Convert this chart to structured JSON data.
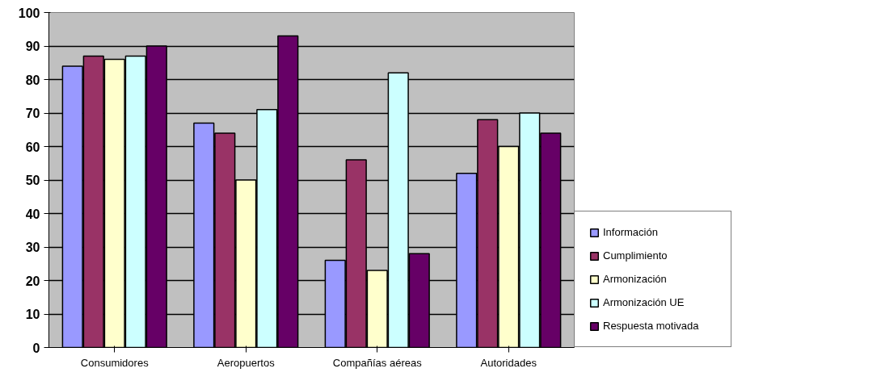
{
  "chart_data": {
    "type": "bar",
    "categories": [
      "Consumidores",
      "Aeropuertos",
      "Compañías aéreas",
      "Autoridades"
    ],
    "series": [
      {
        "name": "Información",
        "color": "#9999ff",
        "values": [
          84,
          67,
          26,
          52
        ]
      },
      {
        "name": "Cumplimiento",
        "color": "#993366",
        "values": [
          87,
          64,
          56,
          68
        ]
      },
      {
        "name": "Armonización",
        "color": "#ffffcc",
        "values": [
          86,
          50,
          23,
          60
        ]
      },
      {
        "name": "Armonización UE",
        "color": "#ccffff",
        "values": [
          87,
          71,
          82,
          70
        ]
      },
      {
        "name": "Respuesta motivada",
        "color": "#660066",
        "values": [
          90,
          93,
          28,
          64
        ]
      }
    ],
    "ylim": [
      0,
      100
    ],
    "yticks": [
      0,
      10,
      20,
      30,
      40,
      50,
      60,
      70,
      80,
      90,
      100
    ],
    "grid": "y",
    "legend": "right"
  }
}
